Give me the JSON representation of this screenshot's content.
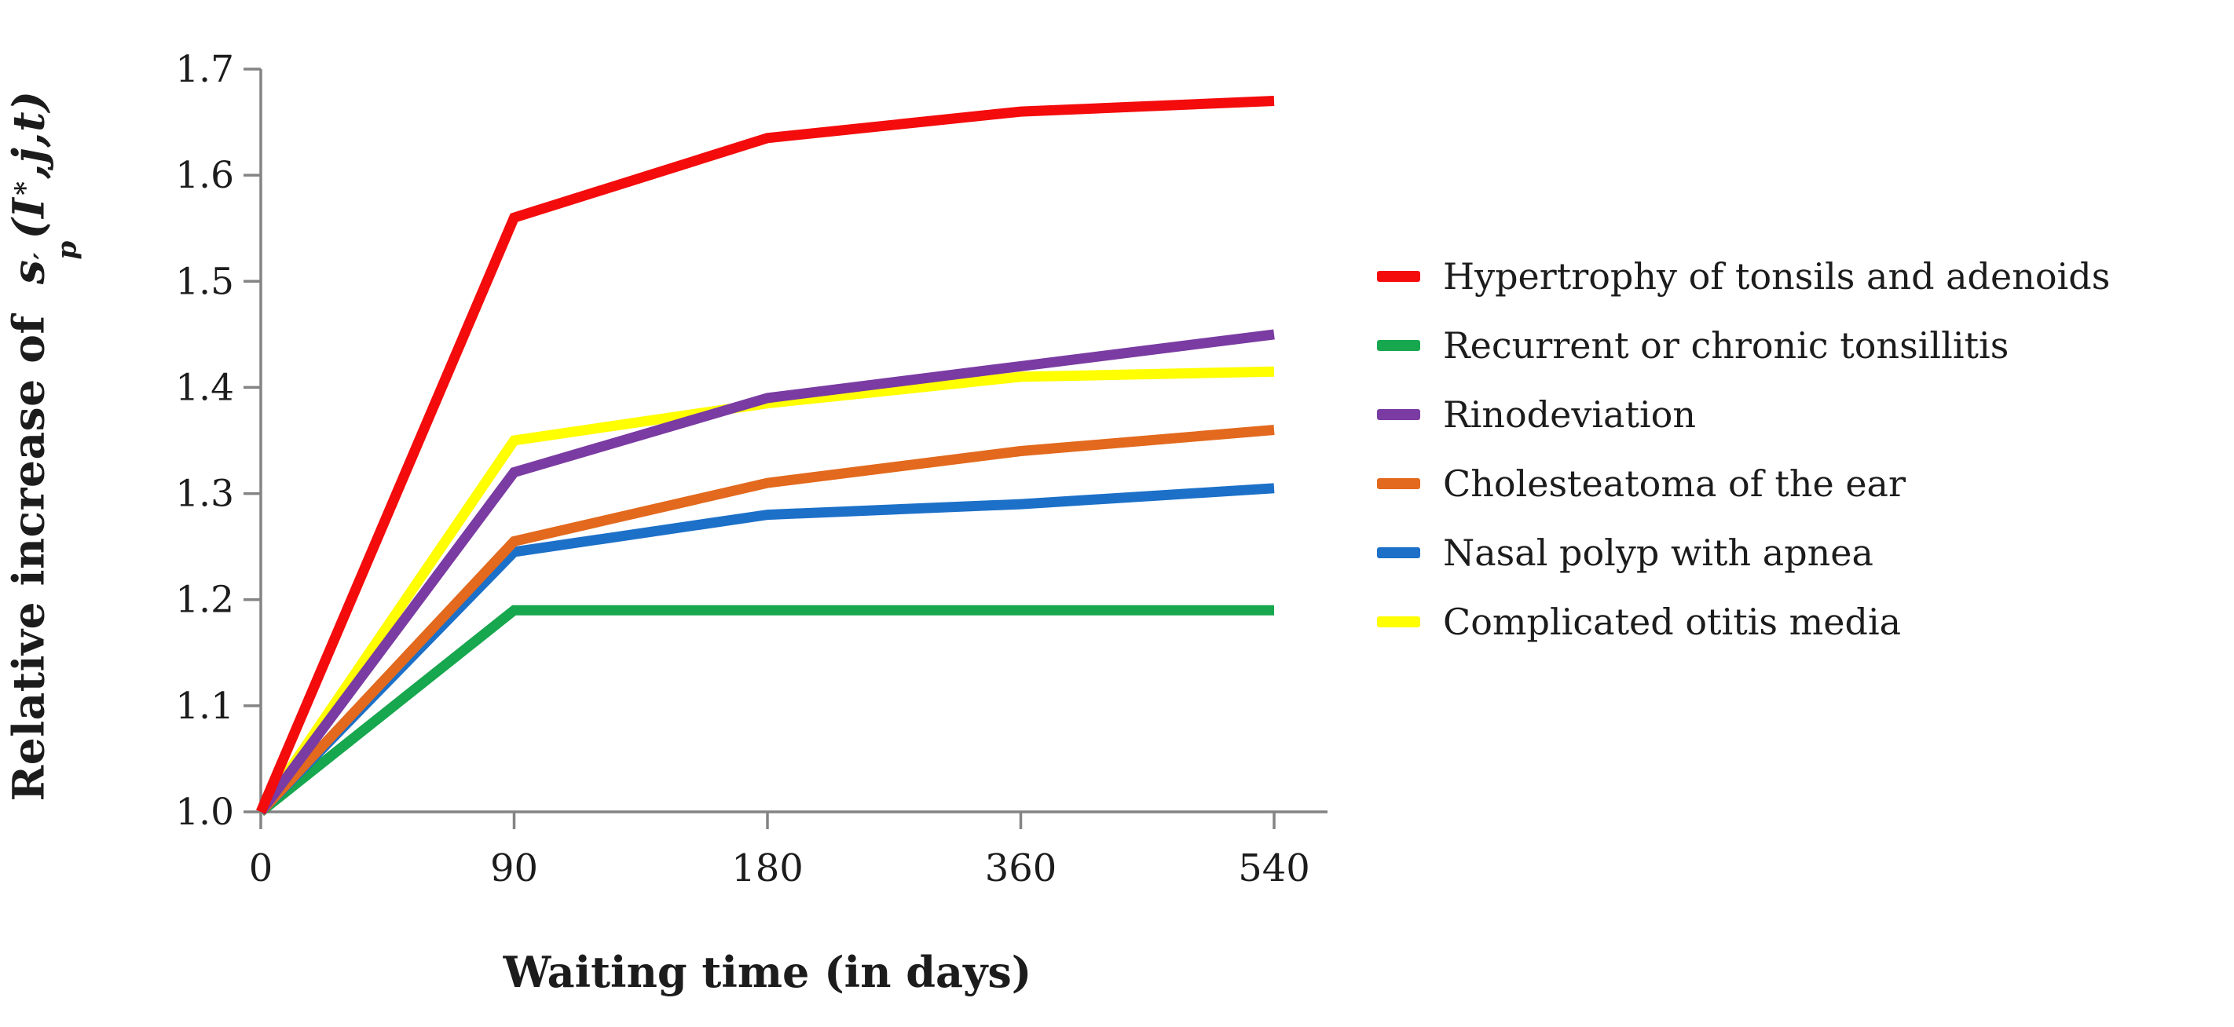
{
  "figure": {
    "background": "#ffffff",
    "axis_color": "#848484",
    "text_color": "#1c1c1c"
  },
  "chart_data": {
    "type": "line",
    "title": "",
    "xlabel": "Waiting time (in days)",
    "ylabel": {
      "plain": "Relative increase of s′p(I∗,j,t)",
      "prefix": "Relative increase of",
      "var": "s",
      "var_sup": "′",
      "var_sub": "p",
      "args_open": "(I",
      "args_sup": "∗",
      "args_rest": ",j,t)"
    },
    "categories": [
      "0",
      "90",
      "180",
      "360",
      "540"
    ],
    "x_values_days": [
      0,
      90,
      180,
      360,
      540
    ],
    "yticks": [
      "1.0",
      "1.1",
      "1.2",
      "1.3",
      "1.4",
      "1.5",
      "1.6",
      "1.7"
    ],
    "ylim": [
      1.0,
      1.7
    ],
    "grid": false,
    "legend_position": "right",
    "series": [
      {
        "name": "Hypertrophy of tonsils and adenoids",
        "color": "#f40b0b",
        "values": [
          1.0,
          1.56,
          1.635,
          1.66,
          1.67
        ]
      },
      {
        "name": "Recurrent or chronic tonsillitis",
        "color": "#17a74e",
        "values": [
          1.0,
          1.19,
          1.19,
          1.19,
          1.19
        ]
      },
      {
        "name": "Rinodeviation",
        "color": "#7a3ba2",
        "values": [
          1.0,
          1.32,
          1.39,
          1.42,
          1.45
        ]
      },
      {
        "name": "Cholesteatoma of the ear",
        "color": "#e2691d",
        "values": [
          1.0,
          1.255,
          1.31,
          1.34,
          1.36
        ]
      },
      {
        "name": "Nasal polyp with apnea",
        "color": "#1c70c8",
        "values": [
          1.0,
          1.245,
          1.28,
          1.29,
          1.305
        ]
      },
      {
        "name": "Complicated otitis media",
        "color": "#ffff00",
        "values": [
          1.0,
          1.35,
          1.385,
          1.41,
          1.415
        ]
      }
    ]
  }
}
